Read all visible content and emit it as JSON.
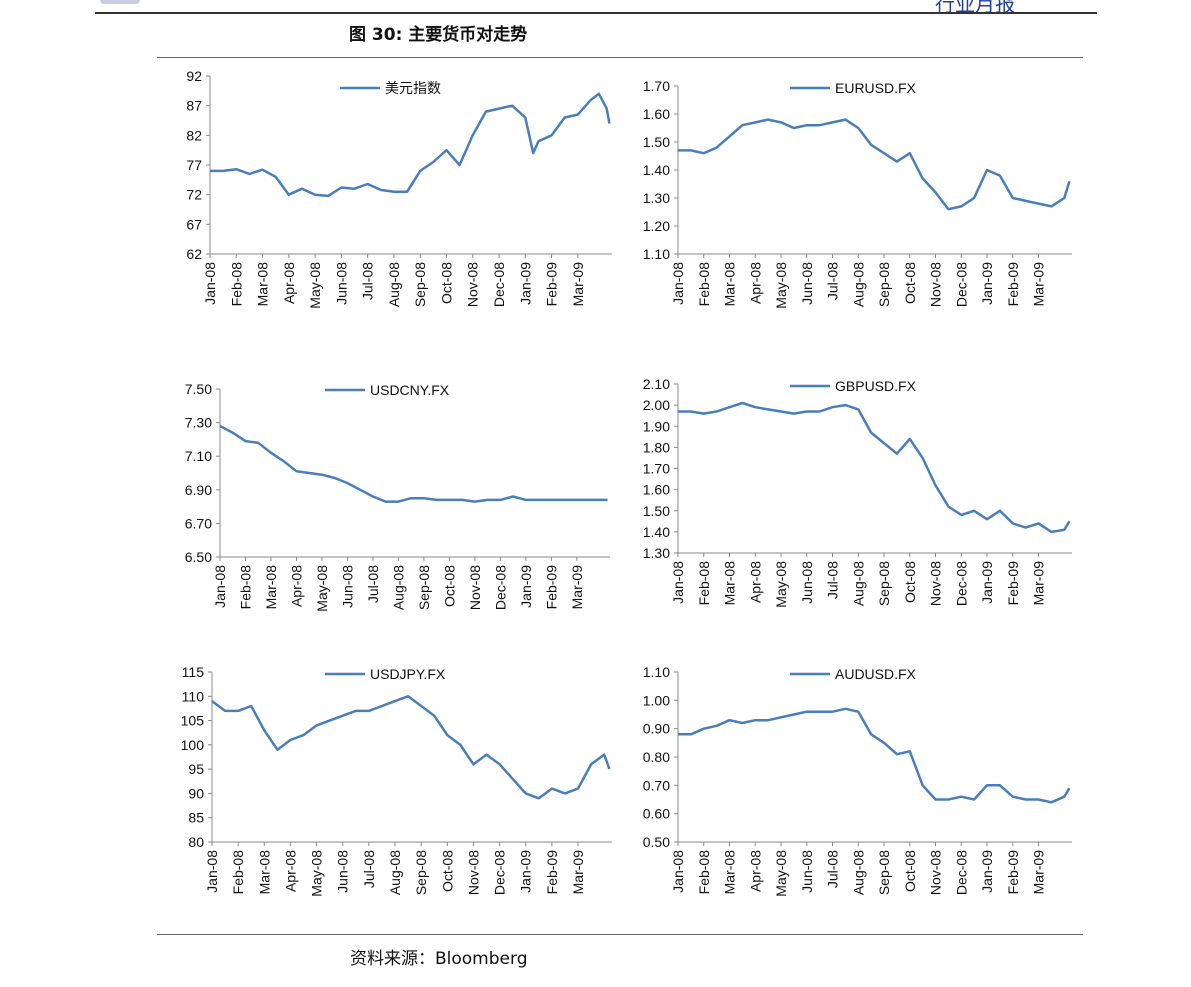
{
  "header": {
    "report_type": "行业月报"
  },
  "figure": {
    "title": "图 30:  主要货币对走势",
    "source": "资料来源：Bloomberg"
  },
  "chart_data": [
    {
      "type": "line",
      "title": "",
      "legend": "美元指数",
      "ylim": [
        62,
        92
      ],
      "yticks": [
        "92",
        "87",
        "82",
        "77",
        "72",
        "67",
        "62"
      ],
      "ystep": 5,
      "xlabels": [
        "Jan-08",
        "Feb-08",
        "Mar-08",
        "Apr-08",
        "May-08",
        "Jun-08",
        "Jul-08",
        "Aug-08",
        "Sep-08",
        "Oct-08",
        "Nov-08",
        "Dec-08",
        "Jan-09",
        "Feb-09",
        "Mar-09"
      ],
      "x": [
        0,
        0.5,
        1,
        1.5,
        2,
        2.5,
        3,
        3.5,
        4,
        4.5,
        5,
        5.5,
        6,
        6.5,
        7,
        7.5,
        8,
        8.5,
        9,
        9.5,
        10,
        10.5,
        11,
        11.5,
        12,
        12.3,
        12.5,
        13,
        13.5,
        14,
        14.5,
        14.8,
        15.1,
        15.2
      ],
      "values": [
        76,
        76,
        76.3,
        75.5,
        76.2,
        75,
        72,
        73,
        72,
        71.8,
        73.2,
        73,
        73.8,
        72.8,
        72.5,
        72.5,
        76,
        77.5,
        79.5,
        77,
        82,
        86,
        86.5,
        87,
        85,
        79,
        81,
        82,
        85,
        85.5,
        88,
        89,
        86.5,
        84
      ]
    },
    {
      "type": "line",
      "legend": "EURUSD.FX",
      "ylim": [
        1.1,
        1.7
      ],
      "yticks": [
        "1.70",
        "1.60",
        "1.50",
        "1.40",
        "1.30",
        "1.20",
        "1.10"
      ],
      "ystep": 0.1,
      "xlabels": [
        "Jan-08",
        "Feb-08",
        "Mar-08",
        "Apr-08",
        "May-08",
        "Jun-08",
        "Jul-08",
        "Aug-08",
        "Sep-08",
        "Oct-08",
        "Nov-08",
        "Dec-08",
        "Jan-09",
        "Feb-09",
        "Mar-09"
      ],
      "x": [
        0,
        0.5,
        1,
        1.5,
        2,
        2.5,
        3,
        3.5,
        4,
        4.5,
        5,
        5.5,
        6,
        6.5,
        7,
        7.5,
        8,
        8.5,
        9,
        9.5,
        10,
        10.5,
        11,
        11.5,
        12,
        12.5,
        13,
        13.5,
        14,
        14.5,
        15,
        15.2
      ],
      "values": [
        1.47,
        1.47,
        1.46,
        1.48,
        1.52,
        1.56,
        1.57,
        1.58,
        1.57,
        1.55,
        1.56,
        1.56,
        1.57,
        1.58,
        1.55,
        1.49,
        1.46,
        1.43,
        1.46,
        1.37,
        1.32,
        1.26,
        1.27,
        1.3,
        1.4,
        1.38,
        1.3,
        1.29,
        1.28,
        1.27,
        1.3,
        1.36
      ]
    },
    {
      "type": "line",
      "legend": "USDCNY.FX",
      "ylim": [
        6.5,
        7.5
      ],
      "yticks": [
        "7.50",
        "7.30",
        "7.10",
        "6.90",
        "6.70",
        "6.50"
      ],
      "ystep": 0.2,
      "xlabels": [
        "Jan-08",
        "Feb-08",
        "Mar-08",
        "Apr-08",
        "May-08",
        "Jun-08",
        "Jul-08",
        "Aug-08",
        "Sep-08",
        "Oct-08",
        "Nov-08",
        "Dec-08",
        "Jan-09",
        "Feb-09",
        "Mar-09"
      ],
      "x": [
        0,
        0.5,
        1,
        1.5,
        2,
        2.5,
        3,
        3.5,
        4,
        4.5,
        5,
        5.5,
        6,
        6.5,
        7,
        7.5,
        8,
        8.5,
        9,
        9.5,
        10,
        10.5,
        11,
        11.5,
        12,
        12.5,
        13,
        13.5,
        14,
        14.5,
        15,
        15.2
      ],
      "values": [
        7.28,
        7.24,
        7.19,
        7.18,
        7.12,
        7.07,
        7.01,
        7.0,
        6.99,
        6.97,
        6.94,
        6.9,
        6.86,
        6.83,
        6.83,
        6.85,
        6.85,
        6.84,
        6.84,
        6.84,
        6.83,
        6.84,
        6.84,
        6.86,
        6.84,
        6.84,
        6.84,
        6.84,
        6.84,
        6.84,
        6.84,
        6.84
      ]
    },
    {
      "type": "line",
      "legend": "GBPUSD.FX",
      "ylim": [
        1.3,
        2.1
      ],
      "yticks": [
        "2.10",
        "2.00",
        "1.90",
        "1.80",
        "1.70",
        "1.60",
        "1.50",
        "1.40",
        "1.30"
      ],
      "ystep": 0.1,
      "xlabels": [
        "Jan-08",
        "Feb-08",
        "Mar-08",
        "Apr-08",
        "May-08",
        "Jun-08",
        "Jul-08",
        "Aug-08",
        "Sep-08",
        "Oct-08",
        "Nov-08",
        "Dec-08",
        "Jan-09",
        "Feb-09",
        "Mar-09"
      ],
      "x": [
        0,
        0.5,
        1,
        1.5,
        2,
        2.5,
        3,
        3.5,
        4,
        4.5,
        5,
        5.5,
        6,
        6.5,
        7,
        7.5,
        8,
        8.5,
        9,
        9.5,
        10,
        10.5,
        11,
        11.5,
        12,
        12.5,
        13,
        13.5,
        14,
        14.5,
        15,
        15.2
      ],
      "values": [
        1.97,
        1.97,
        1.96,
        1.97,
        1.99,
        2.01,
        1.99,
        1.98,
        1.97,
        1.96,
        1.97,
        1.97,
        1.99,
        2.0,
        1.98,
        1.87,
        1.82,
        1.77,
        1.84,
        1.75,
        1.62,
        1.52,
        1.48,
        1.5,
        1.46,
        1.5,
        1.44,
        1.42,
        1.44,
        1.4,
        1.41,
        1.45
      ]
    },
    {
      "type": "line",
      "legend": "USDJPY.FX",
      "ylim": [
        80,
        115
      ],
      "yticks": [
        "115",
        "110",
        "105",
        "100",
        "95",
        "90",
        "85",
        "80"
      ],
      "ystep": 5,
      "xlabels": [
        "Jan-08",
        "Feb-08",
        "Mar-08",
        "Apr-08",
        "May-08",
        "Jun-08",
        "Jul-08",
        "Aug-08",
        "Sep-08",
        "Oct-08",
        "Nov-08",
        "Dec-08",
        "Jan-09",
        "Feb-09",
        "Mar-09"
      ],
      "x": [
        0,
        0.5,
        1,
        1.5,
        2,
        2.5,
        3,
        3.5,
        4,
        4.5,
        5,
        5.5,
        6,
        6.5,
        7,
        7.5,
        8,
        8.5,
        9,
        9.5,
        10,
        10.5,
        11,
        11.5,
        12,
        12.5,
        13,
        13.5,
        14,
        14.5,
        15,
        15.2
      ],
      "values": [
        109,
        107,
        107,
        108,
        103,
        99,
        101,
        102,
        104,
        105,
        106,
        107,
        107,
        108,
        109,
        110,
        108,
        106,
        102,
        100,
        96,
        98,
        96,
        93,
        90,
        89,
        91,
        90,
        91,
        96,
        98,
        95
      ]
    },
    {
      "type": "line",
      "legend": "AUDUSD.FX",
      "ylim": [
        0.5,
        1.1
      ],
      "yticks": [
        "1.10",
        "1.00",
        "0.90",
        "0.80",
        "0.70",
        "0.60",
        "0.50"
      ],
      "ystep": 0.1,
      "xlabels": [
        "Jan-08",
        "Feb-08",
        "Mar-08",
        "Apr-08",
        "May-08",
        "Jun-08",
        "Jul-08",
        "Aug-08",
        "Sep-08",
        "Oct-08",
        "Nov-08",
        "Dec-08",
        "Jan-09",
        "Feb-09",
        "Mar-09"
      ],
      "x": [
        0,
        0.5,
        1,
        1.5,
        2,
        2.5,
        3,
        3.5,
        4,
        4.5,
        5,
        5.5,
        6,
        6.5,
        7,
        7.5,
        8,
        8.5,
        9,
        9.5,
        10,
        10.5,
        11,
        11.5,
        12,
        12.5,
        13,
        13.5,
        14,
        14.5,
        15,
        15.2
      ],
      "values": [
        0.88,
        0.88,
        0.9,
        0.91,
        0.93,
        0.92,
        0.93,
        0.93,
        0.94,
        0.95,
        0.96,
        0.96,
        0.96,
        0.97,
        0.96,
        0.88,
        0.85,
        0.81,
        0.82,
        0.7,
        0.65,
        0.65,
        0.66,
        0.65,
        0.7,
        0.7,
        0.66,
        0.65,
        0.65,
        0.64,
        0.66,
        0.69
      ]
    }
  ],
  "colors": {
    "series": "#4a7ebb",
    "axis": "#888888"
  }
}
